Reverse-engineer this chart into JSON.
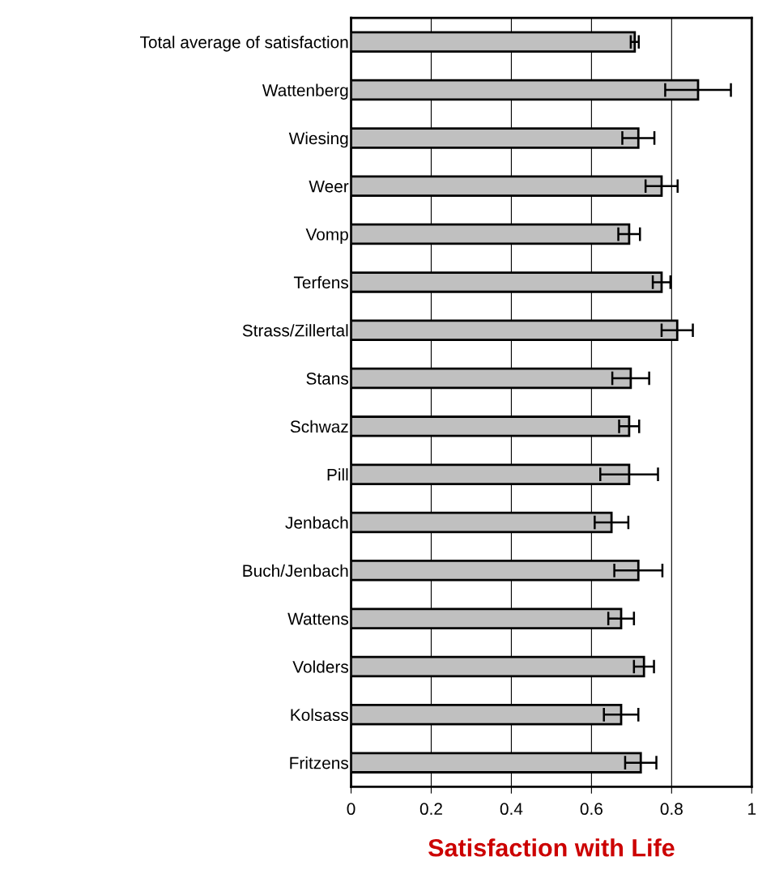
{
  "chart_data": {
    "type": "bar",
    "orientation": "horizontal",
    "xlabel": "Satisfaction with Life",
    "categories": [
      "Total average of satisfaction",
      "Wattenberg",
      "Wiesing",
      "Weer",
      "Vomp",
      "Terfens",
      "Strass/Zillertal",
      "Stans",
      "Schwaz",
      "Pill",
      "Jenbach",
      "Buch/Jenbach",
      "Wattens",
      "Volders",
      "Kolsass",
      "Fritzens"
    ],
    "values": [
      0.708,
      0.866,
      0.717,
      0.775,
      0.694,
      0.775,
      0.814,
      0.698,
      0.694,
      0.694,
      0.65,
      0.717,
      0.674,
      0.731,
      0.674,
      0.723
    ],
    "errors": [
      0.01,
      0.082,
      0.04,
      0.04,
      0.027,
      0.022,
      0.039,
      0.046,
      0.025,
      0.072,
      0.042,
      0.06,
      0.032,
      0.025,
      0.043,
      0.039
    ],
    "color": "#c0c0c0",
    "xlim": [
      0,
      1
    ],
    "xticks": [
      0,
      0.2,
      0.4,
      0.6,
      0.8,
      1
    ],
    "grid": "x"
  }
}
